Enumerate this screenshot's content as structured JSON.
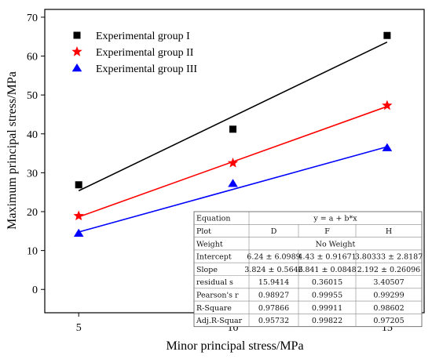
{
  "chart_data": {
    "type": "scatter",
    "xlabel": "Minor principal stress/MPa",
    "ylabel": "Maximum principal stress/MPa",
    "xlim": [
      3.9,
      16.2
    ],
    "ylim": [
      -6,
      72
    ],
    "x_ticks": [
      5,
      10,
      15
    ],
    "y_ticks": [
      0,
      10,
      20,
      30,
      40,
      50,
      60,
      70
    ],
    "grid": false,
    "legend_position": "top-left",
    "series": [
      {
        "name": "Experimental group I",
        "marker": "square",
        "color": "#000000",
        "points": [
          {
            "x": 5,
            "y": 26.9
          },
          {
            "x": 10,
            "y": 41.2
          },
          {
            "x": 15,
            "y": 65.3
          }
        ],
        "fit": {
          "intercept": 6.24,
          "slope": 3.824
        }
      },
      {
        "name": "Experimental group II",
        "marker": "star",
        "color": "#ff0000",
        "points": [
          {
            "x": 5,
            "y": 18.9
          },
          {
            "x": 10,
            "y": 32.5
          },
          {
            "x": 15,
            "y": 47.3
          }
        ],
        "fit": {
          "intercept": 4.43,
          "slope": 2.841
        }
      },
      {
        "name": "Experimental group III",
        "marker": "triangle",
        "color": "#0000ff",
        "points": [
          {
            "x": 5,
            "y": 14.4
          },
          {
            "x": 10,
            "y": 27.2
          },
          {
            "x": 15,
            "y": 36.4
          }
        ],
        "fit": {
          "intercept": 3.80333,
          "slope": 2.192
        }
      }
    ],
    "fit_table": {
      "equation_label": "Equation",
      "equation": "y = a + b*x",
      "plot_label": "Plot",
      "columns": [
        "D",
        "F",
        "H"
      ],
      "weight_label": "Weight",
      "weight": "No Weight",
      "rows": [
        {
          "label": "Intercept",
          "values": [
            "6.24 ± 6.0989",
            "4.43 ± 0.91671",
            "3.80333 ± 2.8187"
          ]
        },
        {
          "label": "Slope",
          "values": [
            "3.824 ± 0.5646",
            "2.841 ± 0.0848",
            "2.192 ± 0.26096"
          ]
        },
        {
          "label": "residual s",
          "values": [
            "15.9414",
            "0.36015",
            "3.40507"
          ]
        },
        {
          "label": "Pearson's r",
          "values": [
            "0.98927",
            "0.99955",
            "0.99299"
          ]
        },
        {
          "label": "R-Square",
          "values": [
            "0.97866",
            "0.99911",
            "0.98602"
          ]
        },
        {
          "label": "Adj.R-Squar",
          "values": [
            "0.95732",
            "0.99822",
            "0.97205"
          ]
        }
      ]
    }
  }
}
